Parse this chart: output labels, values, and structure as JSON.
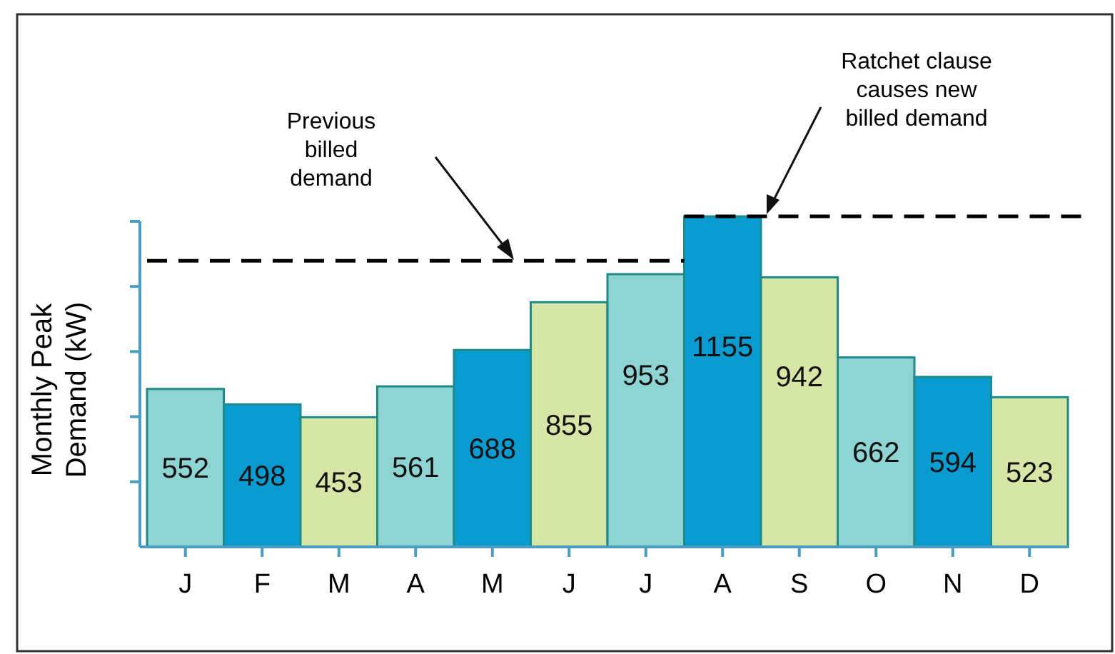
{
  "chart_data": {
    "type": "bar",
    "categories": [
      "J",
      "F",
      "M",
      "A",
      "M",
      "J",
      "J",
      "A",
      "S",
      "O",
      "N",
      "D"
    ],
    "ylabel": "Monthly Peak Demand (kW)",
    "series": [
      {
        "values": [
          552,
          498,
          453,
          561,
          688,
          855,
          953,
          1155,
          942,
          662,
          594,
          523
        ],
        "colors": [
          "#8ed4d2",
          "#0a9bd0",
          "#d5e6a6",
          "#8ed4d2",
          "#0a9bd0",
          "#d5e6a6",
          "#8ed4d2",
          "#0a9bd0",
          "#d5e6a6",
          "#8ed4d2",
          "#0a9bd0",
          "#d5e6a6"
        ]
      }
    ],
    "data_labels": true,
    "ref_lines": [
      {
        "axis": "y",
        "value": 1000,
        "color": "#000000",
        "line_style": "dashed"
      },
      {
        "axis": "y",
        "value": 1155,
        "color": "#000000",
        "line_style": "dashed"
      }
    ],
    "annotations": [
      "Previous billed demand",
      "Ratchet clause causes new billed demand"
    ]
  }
}
